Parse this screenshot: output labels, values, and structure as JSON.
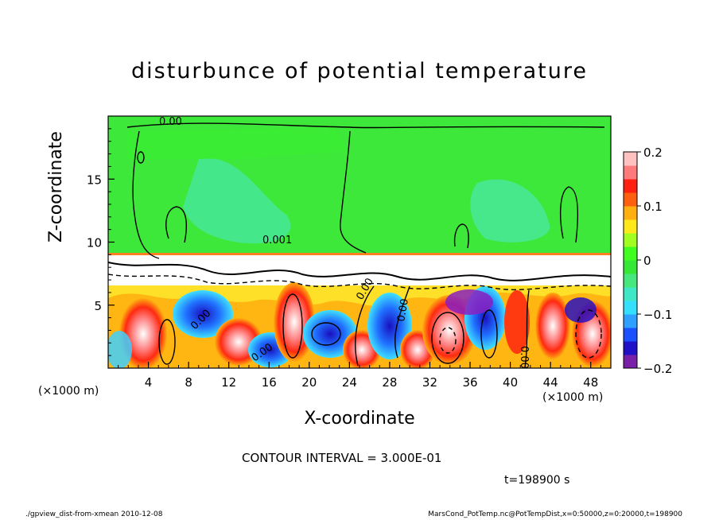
{
  "chart_data": {
    "type": "heatmap",
    "title": "disturbunce of potential temperature",
    "xlabel": "X-coordinate",
    "ylabel": "Z-coordinate",
    "x_unit": "(×1000 m)",
    "x_ticks": [
      4,
      8,
      12,
      16,
      20,
      24,
      28,
      32,
      36,
      40,
      44,
      48
    ],
    "y_ticks": [
      5,
      10,
      15
    ],
    "xlim": [
      0,
      50
    ],
    "ylim": [
      0,
      20
    ],
    "colorbar": {
      "ticks": [
        "0.2",
        "0.1",
        "0",
        "−0.1",
        "−0.2"
      ],
      "range": [
        -0.2,
        0.2
      ],
      "colors": [
        "#7a1fa8",
        "#2010c8",
        "#1a50ff",
        "#2fa0ff",
        "#35e0ff",
        "#3ee8c6",
        "#46e87d",
        "#36e836",
        "#40ff20",
        "#a0ff20",
        "#ffe81a",
        "#ffb010",
        "#ff6010",
        "#ff2010",
        "#ff7a7a",
        "#ffc0c0"
      ]
    },
    "contour_labels": [
      "0.00",
      "0.001",
      "0.00",
      "0.00",
      "0.00",
      "0.00",
      "0.00"
    ],
    "contour_interval": "CONTOUR INTERVAL = 3.000E-01",
    "time": "t=198900 s"
  },
  "footer": {
    "left": "./gpview_dist-from-xmean  2010-12-08",
    "right": "MarsCond_PotTemp.nc@PotTempDist,x=0:50000,z=0:20000,t=198900"
  }
}
